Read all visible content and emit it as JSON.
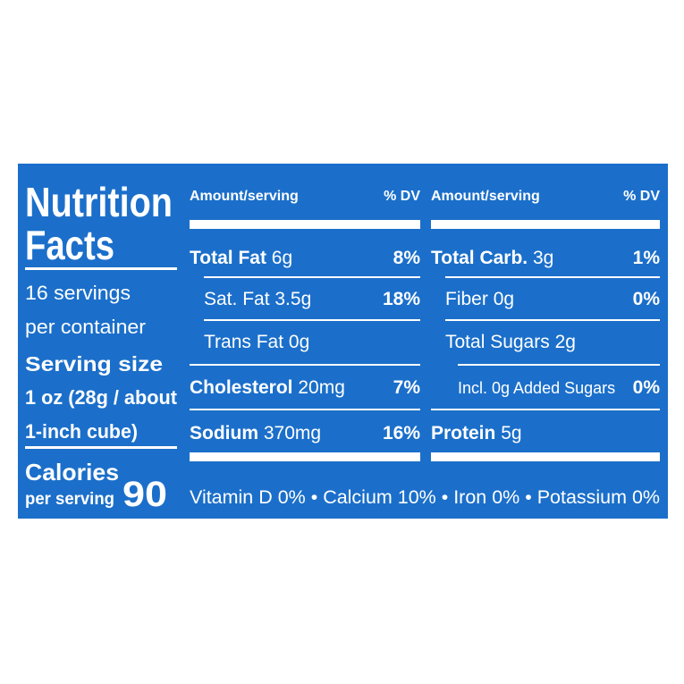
{
  "title_line1": "Nutrition",
  "title_line2": "Facts",
  "servings_line1": "16 servings",
  "servings_line2": "per container",
  "serving_size_label": "Serving size",
  "serving_size_line1": "1 oz (28g / about",
  "serving_size_line2": "1-inch cube)",
  "calories_label": "Calories",
  "calories_sub": "per serving",
  "calories": "90",
  "columns": [
    {
      "header_amount": "Amount/serving",
      "header_dv": "% DV",
      "rows": [
        {
          "level": "main",
          "name": "Total Fat",
          "amount": "6g",
          "dv": "8%"
        },
        {
          "level": "sub",
          "name": "Sat. Fat",
          "amount": "3.5g",
          "dv": "18%"
        },
        {
          "level": "sub",
          "name": "Trans Fat",
          "amount": "0g"
        },
        {
          "level": "main",
          "name": "Cholesterol",
          "amount": "20mg",
          "dv": "7%"
        },
        {
          "level": "main",
          "name": "Sodium",
          "amount": "370mg",
          "dv": "16%"
        }
      ]
    },
    {
      "header_amount": "Amount/serving",
      "header_dv": "% DV",
      "rows": [
        {
          "level": "main",
          "name": "Total Carb.",
          "amount": "3g",
          "dv": "1%"
        },
        {
          "level": "sub",
          "name": "Fiber",
          "amount": "0g",
          "dv": "0%"
        },
        {
          "level": "sub",
          "name": "Total Sugars",
          "amount": "2g"
        },
        {
          "level": "subsub",
          "name": "Incl. 0g Added Sugars",
          "dv": "0%"
        },
        {
          "level": "main",
          "name": "Protein",
          "amount": "5g"
        }
      ]
    }
  ],
  "footer": "Vitamin D 0% • Calcium 10% • Iron 0% • Potassium 0%"
}
